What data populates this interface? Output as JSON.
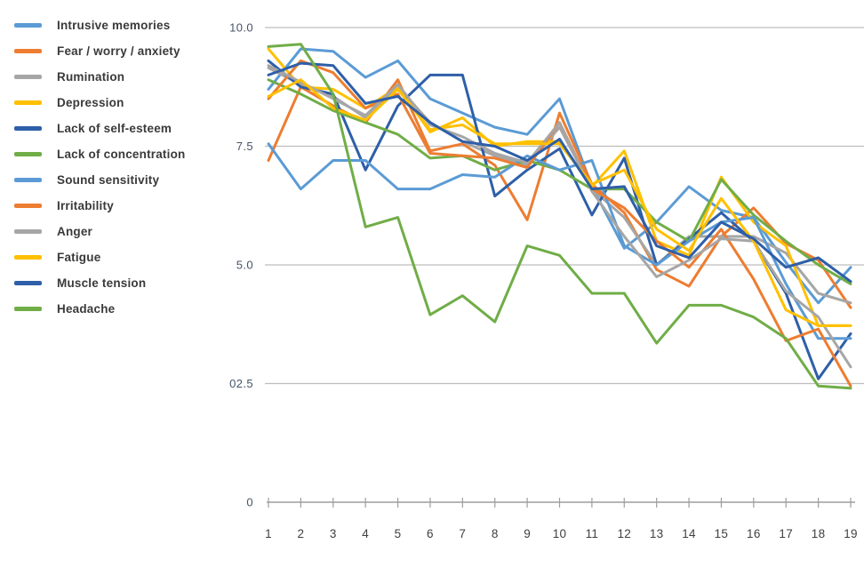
{
  "chart_data": {
    "type": "line",
    "title": "",
    "xlabel": "",
    "ylabel": "",
    "x_labels": [
      "1",
      "2",
      "3",
      "4",
      "5",
      "6",
      "7",
      "8",
      "9",
      "10",
      "11",
      "12",
      "13",
      "14",
      "15",
      "16",
      "17",
      "18",
      "19"
    ],
    "y_axis": {
      "range": [
        0,
        10
      ],
      "ticks": [
        {
          "label": "10.0",
          "value": 10
        },
        {
          "label": "7.5",
          "value": 7.5
        },
        {
          "label": "5.0",
          "value": 5
        },
        {
          "label": "02.5",
          "value": 2.5
        },
        {
          "label": "0",
          "value": 0
        }
      ]
    },
    "grid": "horizontal",
    "legend_position": "left",
    "colors": {
      "light_blue": "#5B9BD5",
      "orange": "#ED7D31",
      "gray": "#A6A6A6",
      "yellow": "#FFC000",
      "blue": "#2E5FA8",
      "green": "#70AD47",
      "gridline": "#BDBDBD",
      "axis": "#9E9E9E",
      "y_label": "#44546A",
      "x_label": "#3F3F3F"
    },
    "series": [
      {
        "name": "Intrusive memories",
        "color": "#5B9BD5",
        "values": [
          8.7,
          9.55,
          9.5,
          8.95,
          9.3,
          8.5,
          8.2,
          7.9,
          7.75,
          8.5,
          6.65,
          5.35,
          5.9,
          6.65,
          6.15,
          6.0,
          5.05,
          4.2,
          4.95
        ]
      },
      {
        "name": "Fear / worry / anxiety",
        "color": "#ED7D31",
        "values": [
          7.2,
          8.75,
          8.35,
          8.0,
          8.9,
          7.4,
          7.55,
          7.1,
          5.95,
          8.2,
          6.7,
          6.1,
          4.9,
          4.55,
          5.6,
          6.2,
          5.45,
          5.1,
          4.1
        ]
      },
      {
        "name": "Rumination",
        "color": "#A6A6A6",
        "values": [
          9.15,
          8.8,
          8.55,
          8.1,
          8.75,
          8.0,
          7.6,
          7.3,
          7.1,
          7.9,
          6.6,
          6.0,
          5.0,
          5.6,
          5.6,
          5.6,
          5.25,
          4.4,
          4.2
        ]
      },
      {
        "name": "Depression",
        "color": "#FFC000",
        "values": [
          9.55,
          8.75,
          8.7,
          8.3,
          8.75,
          7.8,
          8.1,
          7.5,
          7.6,
          7.6,
          6.65,
          7.4,
          5.5,
          5.2,
          6.85,
          5.9,
          5.4,
          3.72,
          3.72
        ]
      },
      {
        "name": "Lack of self-esteem",
        "color": "#2E5FA8",
        "values": [
          9.3,
          8.75,
          8.6,
          7.0,
          8.35,
          9.0,
          9.0,
          6.45,
          7.0,
          7.45,
          6.05,
          7.25,
          5.0,
          5.55,
          6.1,
          5.5,
          4.4,
          2.6,
          3.55
        ]
      },
      {
        "name": "Lack of concentration",
        "color": "#70AD47",
        "values": [
          8.9,
          8.6,
          8.25,
          8.0,
          7.75,
          7.25,
          7.3,
          7.0,
          7.2,
          7.0,
          6.6,
          6.6,
          5.9,
          5.5,
          6.8,
          6.05,
          5.5,
          5.0,
          4.6
        ]
      },
      {
        "name": "Sound sensitivity",
        "color": "#5B9BD5",
        "values": [
          7.55,
          6.6,
          7.2,
          7.2,
          6.6,
          6.6,
          6.9,
          6.85,
          7.3,
          7.0,
          7.2,
          5.4,
          5.0,
          5.5,
          5.9,
          6.0,
          4.6,
          3.45,
          3.45
        ]
      },
      {
        "name": "Irritability",
        "color": "#ED7D31",
        "values": [
          8.5,
          9.3,
          9.05,
          8.3,
          8.6,
          7.35,
          7.3,
          7.25,
          7.05,
          8.0,
          6.6,
          6.2,
          5.5,
          4.95,
          5.75,
          4.7,
          3.4,
          3.65,
          2.45
        ]
      },
      {
        "name": "Anger",
        "color": "#A6A6A6",
        "values": [
          9.2,
          8.85,
          8.5,
          8.15,
          8.8,
          7.95,
          7.7,
          7.35,
          7.15,
          8.0,
          6.55,
          5.6,
          4.75,
          5.1,
          5.55,
          5.5,
          4.45,
          3.9,
          2.85
        ]
      },
      {
        "name": "Fatigue",
        "color": "#FFC000",
        "values": [
          8.55,
          8.9,
          8.3,
          8.05,
          8.7,
          7.85,
          7.95,
          7.55,
          7.55,
          7.55,
          6.7,
          7.0,
          5.75,
          5.3,
          6.4,
          5.5,
          4.05,
          3.72,
          3.72
        ]
      },
      {
        "name": "Muscle tension",
        "color": "#2E5FA8",
        "values": [
          9.0,
          9.25,
          9.2,
          8.4,
          8.55,
          8.0,
          7.6,
          7.5,
          7.2,
          7.65,
          6.6,
          6.65,
          5.4,
          5.15,
          5.9,
          5.55,
          4.95,
          5.15,
          4.65
        ]
      },
      {
        "name": "Headache",
        "color": "#70AD47",
        "values": [
          9.6,
          9.65,
          8.6,
          5.8,
          6.0,
          3.95,
          4.35,
          3.8,
          5.4,
          5.2,
          4.4,
          4.4,
          3.35,
          4.15,
          4.15,
          3.9,
          3.45,
          2.45,
          2.4
        ]
      }
    ]
  }
}
